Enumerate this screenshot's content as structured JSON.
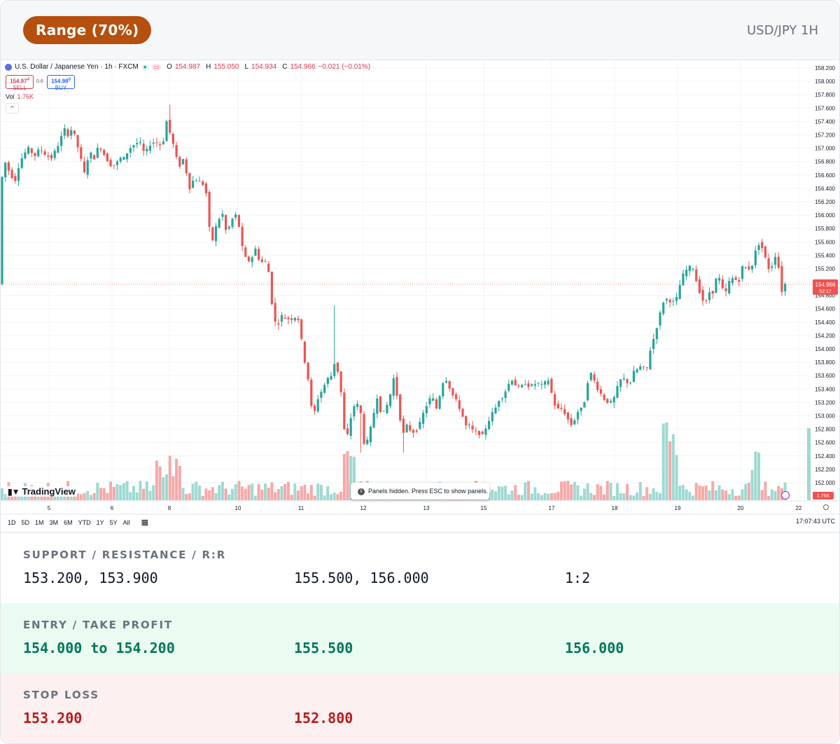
{
  "header": {
    "badge": "Range (70%)",
    "pair_label": "USD/JPY 1H",
    "badge_color": "#b6500e"
  },
  "chart": {
    "legend": {
      "symbol": "U.S. Dollar / Japanese Yen · 1h · FXCM",
      "o_label": "O",
      "o": "154.987",
      "h_label": "H",
      "h": "155.050",
      "l_label": "L",
      "l": "154.934",
      "c_label": "C",
      "c": "154.966",
      "change": "−0.021 (−0.01%)"
    },
    "sell_price": "154.97",
    "sell_price_sup": "4",
    "sell_label": "SELL",
    "spread": "0.6",
    "buy_price": "154.98",
    "buy_price_sup": "0",
    "buy_label": "BUY",
    "vol_label": "Vol",
    "vol_value": "1.76K",
    "logo_text": "TradingView",
    "toast_text": "Panels hidden. Press ESC to show panels.",
    "range_buttons": [
      "1D",
      "5D",
      "1M",
      "3M",
      "6M",
      "YTD",
      "1Y",
      "5Y",
      "All"
    ],
    "clock": "17:07:43 UTC",
    "price_tag": "154.966",
    "countdown": "52:17",
    "volume_tag": "1.76K",
    "colors": {
      "up": "#26a69a",
      "down": "#ef5350",
      "vol_up": "#9fd9d2",
      "vol_down": "#f5a9a8"
    }
  },
  "chart_data": {
    "type": "candlestick",
    "y_ticks": [
      "158.200",
      "158.000",
      "157.800",
      "157.600",
      "157.400",
      "157.200",
      "157.000",
      "156.800",
      "156.600",
      "156.400",
      "156.200",
      "156.000",
      "155.800",
      "155.600",
      "155.400",
      "155.200",
      "155.000",
      "154.800",
      "154.600",
      "154.400",
      "154.200",
      "154.000",
      "153.800",
      "153.600",
      "153.400",
      "153.200",
      "153.000",
      "152.800",
      "152.600",
      "152.400",
      "152.200",
      "152.000"
    ],
    "x_ticks": [
      "5",
      "6",
      "8",
      "10",
      "11",
      "12",
      "13",
      "15",
      "17",
      "18",
      "19",
      "20",
      "22"
    ],
    "ylim": [
      151.85,
      158.25
    ],
    "last_price": 154.966,
    "price_path": [
      [
        0,
        156.35
      ],
      [
        8,
        156.8
      ],
      [
        14,
        156.65
      ],
      [
        22,
        156.5
      ],
      [
        28,
        156.75
      ],
      [
        34,
        156.9
      ],
      [
        42,
        157.0
      ],
      [
        50,
        156.88
      ],
      [
        58,
        157.0
      ],
      [
        66,
        156.9
      ],
      [
        74,
        156.85
      ],
      [
        82,
        157.0
      ],
      [
        88,
        157.15
      ],
      [
        92,
        157.3
      ],
      [
        98,
        157.2
      ],
      [
        104,
        157.3
      ],
      [
        110,
        157.1
      ],
      [
        116,
        156.85
      ],
      [
        122,
        156.6
      ],
      [
        128,
        156.95
      ],
      [
        136,
        156.85
      ],
      [
        142,
        157.05
      ],
      [
        150,
        156.9
      ],
      [
        158,
        156.75
      ],
      [
        166,
        156.75
      ],
      [
        172,
        156.85
      ],
      [
        178,
        156.85
      ],
      [
        186,
        157.0
      ],
      [
        192,
        157.05
      ],
      [
        200,
        157.1
      ],
      [
        208,
        156.9
      ],
      [
        214,
        157.05
      ],
      [
        222,
        157.1
      ],
      [
        230,
        157.05
      ],
      [
        236,
        157.15
      ],
      [
        240,
        157.5
      ],
      [
        244,
        157.2
      ],
      [
        250,
        157.0
      ],
      [
        256,
        156.7
      ],
      [
        262,
        156.85
      ],
      [
        268,
        156.6
      ],
      [
        272,
        156.4
      ],
      [
        278,
        156.55
      ],
      [
        286,
        156.5
      ],
      [
        292,
        156.45
      ],
      [
        296,
        156.3
      ],
      [
        300,
        155.8
      ],
      [
        304,
        155.6
      ],
      [
        310,
        155.85
      ],
      [
        318,
        156.05
      ],
      [
        324,
        155.75
      ],
      [
        330,
        155.85
      ],
      [
        336,
        156.05
      ],
      [
        342,
        155.85
      ],
      [
        348,
        155.45
      ],
      [
        354,
        155.3
      ],
      [
        360,
        155.35
      ],
      [
        366,
        155.5
      ],
      [
        372,
        155.3
      ],
      [
        380,
        155.3
      ],
      [
        386,
        155.1
      ],
      [
        390,
        154.6
      ],
      [
        396,
        154.3
      ],
      [
        402,
        154.5
      ],
      [
        410,
        154.45
      ],
      [
        418,
        154.45
      ],
      [
        426,
        154.5
      ],
      [
        432,
        154.1
      ],
      [
        438,
        153.7
      ],
      [
        442,
        153.5
      ],
      [
        446,
        153.1
      ],
      [
        450,
        153.05
      ],
      [
        456,
        153.3
      ],
      [
        462,
        153.4
      ],
      [
        468,
        153.55
      ],
      [
        474,
        153.6
      ],
      [
        478,
        153.8
      ],
      [
        484,
        153.65
      ],
      [
        488,
        153.35
      ],
      [
        492,
        152.8
      ],
      [
        498,
        152.7
      ],
      [
        504,
        153.1
      ],
      [
        510,
        153.2
      ],
      [
        516,
        153.05
      ],
      [
        522,
        152.5
      ],
      [
        528,
        152.7
      ],
      [
        534,
        153.0
      ],
      [
        540,
        153.3
      ],
      [
        546,
        153.0
      ],
      [
        552,
        153.1
      ],
      [
        558,
        153.3
      ],
      [
        564,
        153.6
      ],
      [
        570,
        153.15
      ],
      [
        576,
        152.7
      ],
      [
        582,
        152.85
      ],
      [
        590,
        152.75
      ],
      [
        598,
        152.8
      ],
      [
        606,
        153.05
      ],
      [
        612,
        153.2
      ],
      [
        618,
        153.3
      ],
      [
        624,
        153.1
      ],
      [
        630,
        153.35
      ],
      [
        636,
        153.6
      ],
      [
        642,
        153.45
      ],
      [
        648,
        153.3
      ],
      [
        654,
        153.2
      ],
      [
        660,
        153.05
      ],
      [
        666,
        152.85
      ],
      [
        672,
        152.85
      ],
      [
        678,
        152.75
      ],
      [
        684,
        152.75
      ],
      [
        690,
        152.7
      ],
      [
        696,
        152.85
      ],
      [
        702,
        153.0
      ],
      [
        708,
        153.1
      ],
      [
        714,
        153.25
      ],
      [
        720,
        153.3
      ],
      [
        726,
        153.45
      ],
      [
        732,
        153.55
      ],
      [
        738,
        153.45
      ],
      [
        744,
        153.4
      ],
      [
        750,
        153.5
      ],
      [
        756,
        153.45
      ],
      [
        762,
        153.45
      ],
      [
        768,
        153.5
      ],
      [
        774,
        153.45
      ],
      [
        780,
        153.5
      ],
      [
        786,
        153.55
      ],
      [
        790,
        153.25
      ],
      [
        796,
        153.1
      ],
      [
        804,
        153.1
      ],
      [
        810,
        153.0
      ],
      [
        816,
        152.85
      ],
      [
        822,
        152.95
      ],
      [
        828,
        153.1
      ],
      [
        834,
        153.1
      ],
      [
        840,
        153.5
      ],
      [
        846,
        153.65
      ],
      [
        852,
        153.45
      ],
      [
        858,
        153.35
      ],
      [
        864,
        153.25
      ],
      [
        870,
        153.2
      ],
      [
        876,
        153.2
      ],
      [
        882,
        153.4
      ],
      [
        888,
        153.55
      ],
      [
        894,
        153.55
      ],
      [
        900,
        153.45
      ],
      [
        906,
        153.65
      ],
      [
        912,
        153.7
      ],
      [
        918,
        153.75
      ],
      [
        924,
        153.65
      ],
      [
        930,
        154.0
      ],
      [
        936,
        154.2
      ],
      [
        942,
        154.45
      ],
      [
        948,
        154.7
      ],
      [
        954,
        154.75
      ],
      [
        960,
        154.7
      ],
      [
        966,
        154.7
      ],
      [
        972,
        154.95
      ],
      [
        978,
        155.15
      ],
      [
        984,
        155.2
      ],
      [
        990,
        155.25
      ],
      [
        996,
        155.0
      ],
      [
        1002,
        154.8
      ],
      [
        1008,
        154.65
      ],
      [
        1014,
        154.85
      ],
      [
        1020,
        154.85
      ],
      [
        1026,
        155.15
      ],
      [
        1032,
        154.9
      ],
      [
        1038,
        154.85
      ],
      [
        1044,
        155.05
      ],
      [
        1050,
        155.05
      ],
      [
        1056,
        155.0
      ],
      [
        1062,
        155.25
      ],
      [
        1068,
        155.2
      ],
      [
        1074,
        155.2
      ],
      [
        1080,
        155.45
      ],
      [
        1086,
        155.6
      ],
      [
        1092,
        155.45
      ],
      [
        1098,
        155.2
      ],
      [
        1104,
        155.25
      ],
      [
        1110,
        155.45
      ],
      [
        1114,
        155.15
      ],
      [
        1118,
        154.85
      ],
      [
        1122,
        154.97
      ]
    ]
  },
  "info": {
    "row1": {
      "title": "SUPPORT / RESISTANCE / R:R",
      "support": "153.200, 153.900",
      "resistance": "155.500, 156.000",
      "rr": "1:2"
    },
    "row2": {
      "title": "ENTRY / TAKE PROFIT",
      "entry": "154.000 to 154.200",
      "tp1": "155.500",
      "tp2": "156.000"
    },
    "row3": {
      "title": "STOP LOSS",
      "sl1": "153.200",
      "sl2": "152.800"
    }
  }
}
